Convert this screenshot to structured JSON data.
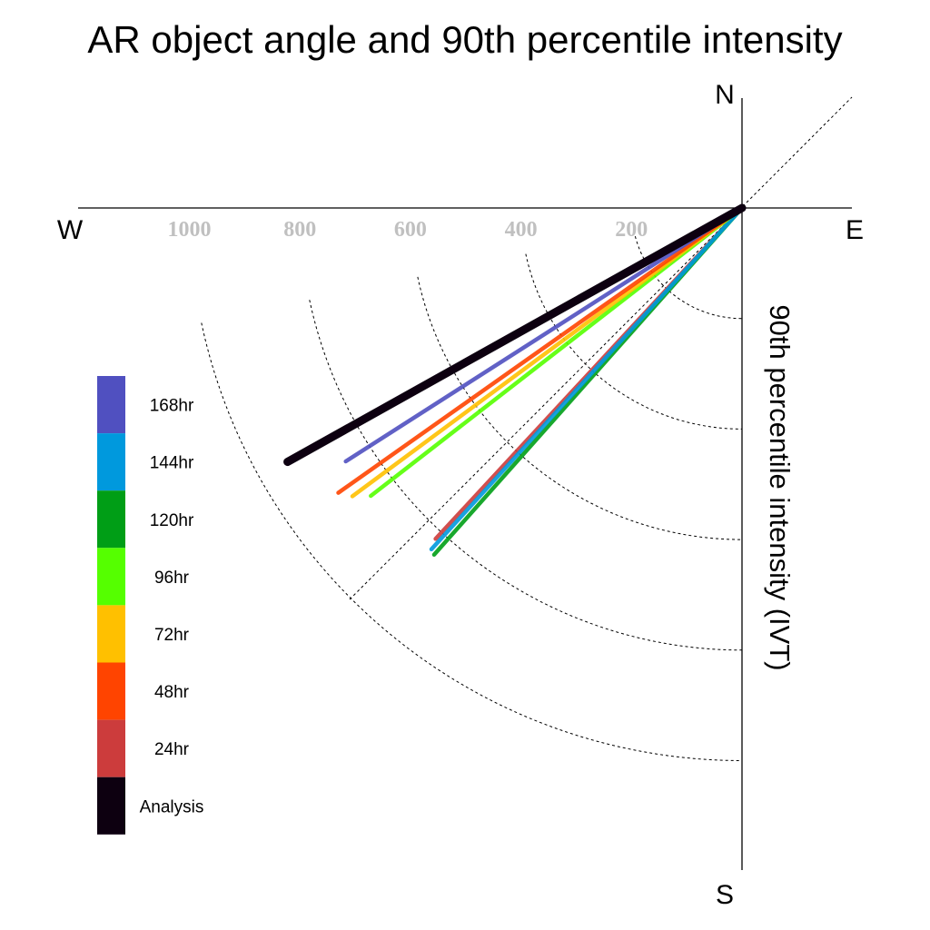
{
  "chart_data": {
    "type": "polar-line",
    "title": "AR object angle and 90th percentile intensity",
    "radial_label": "90th percentile intensity (IVT)",
    "compass": {
      "north": "N",
      "east": "E",
      "south": "S",
      "west": "W"
    },
    "radial_ticks": [
      200,
      400,
      600,
      800,
      1000
    ],
    "radial_tick_labels": [
      "200",
      "400",
      "600",
      "800",
      "1000"
    ],
    "radial_range": [
      0,
      1000
    ],
    "angle_units": "degrees measured clockwise from west (below W–E axis)",
    "legend_position": "left",
    "series": [
      {
        "name": "Analysis",
        "color": "#0d0010",
        "angle": 29.2,
        "value": 942
      },
      {
        "name": "24hr",
        "color": "#cc3c3c",
        "angle": 47.2,
        "value": 816
      },
      {
        "name": "48hr",
        "color": "#ff4400",
        "angle": 35.2,
        "value": 894
      },
      {
        "name": "72hr",
        "color": "#ffc000",
        "angle": 36.5,
        "value": 877
      },
      {
        "name": "96hr",
        "color": "#55ff00",
        "angle": 37.8,
        "value": 850
      },
      {
        "name": "120hr",
        "color": "#009e16",
        "angle": 48.4,
        "value": 839
      },
      {
        "name": "144hr",
        "color": "#0099dd",
        "angle": 47.7,
        "value": 835
      },
      {
        "name": "168hr",
        "color": "#5050c0",
        "angle": 32.6,
        "value": 851
      }
    ],
    "legend_order": [
      "168hr",
      "144hr",
      "120hr",
      "96hr",
      "72hr",
      "48hr",
      "24hr",
      "Analysis"
    ],
    "reference_diagonal": "dashed line through origin at 45°",
    "grid": true
  }
}
